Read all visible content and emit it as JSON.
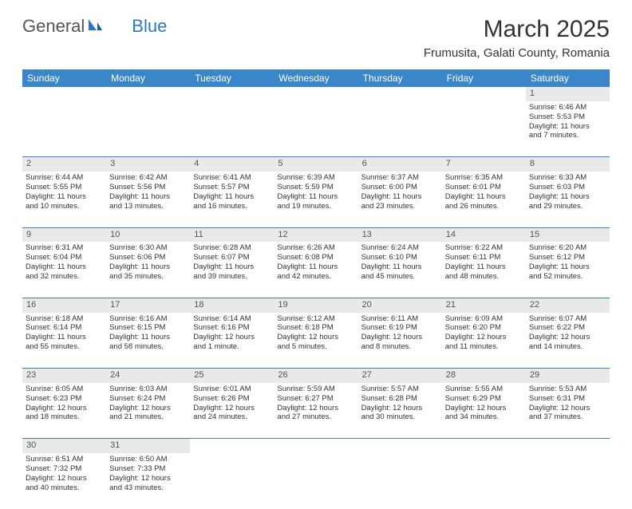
{
  "logo": {
    "general": "General",
    "blue": "Blue"
  },
  "title": "March 2025",
  "location": "Frumusita, Galati County, Romania",
  "headers": [
    "Sunday",
    "Monday",
    "Tuesday",
    "Wednesday",
    "Thursday",
    "Friday",
    "Saturday"
  ],
  "colors": {
    "header_bg": "#3a86c8",
    "header_fg": "#ffffff",
    "daynum_bg": "#e9e9e9",
    "border": "#3a86c8",
    "logo_blue": "#2b78c2"
  },
  "weeks": [
    [
      null,
      null,
      null,
      null,
      null,
      null,
      {
        "n": "1",
        "sr": "Sunrise: 6:46 AM",
        "ss": "Sunset: 5:53 PM",
        "d1": "Daylight: 11 hours",
        "d2": "and 7 minutes."
      }
    ],
    [
      {
        "n": "2",
        "sr": "Sunrise: 6:44 AM",
        "ss": "Sunset: 5:55 PM",
        "d1": "Daylight: 11 hours",
        "d2": "and 10 minutes."
      },
      {
        "n": "3",
        "sr": "Sunrise: 6:42 AM",
        "ss": "Sunset: 5:56 PM",
        "d1": "Daylight: 11 hours",
        "d2": "and 13 minutes."
      },
      {
        "n": "4",
        "sr": "Sunrise: 6:41 AM",
        "ss": "Sunset: 5:57 PM",
        "d1": "Daylight: 11 hours",
        "d2": "and 16 minutes."
      },
      {
        "n": "5",
        "sr": "Sunrise: 6:39 AM",
        "ss": "Sunset: 5:59 PM",
        "d1": "Daylight: 11 hours",
        "d2": "and 19 minutes."
      },
      {
        "n": "6",
        "sr": "Sunrise: 6:37 AM",
        "ss": "Sunset: 6:00 PM",
        "d1": "Daylight: 11 hours",
        "d2": "and 23 minutes."
      },
      {
        "n": "7",
        "sr": "Sunrise: 6:35 AM",
        "ss": "Sunset: 6:01 PM",
        "d1": "Daylight: 11 hours",
        "d2": "and 26 minutes."
      },
      {
        "n": "8",
        "sr": "Sunrise: 6:33 AM",
        "ss": "Sunset: 6:03 PM",
        "d1": "Daylight: 11 hours",
        "d2": "and 29 minutes."
      }
    ],
    [
      {
        "n": "9",
        "sr": "Sunrise: 6:31 AM",
        "ss": "Sunset: 6:04 PM",
        "d1": "Daylight: 11 hours",
        "d2": "and 32 minutes."
      },
      {
        "n": "10",
        "sr": "Sunrise: 6:30 AM",
        "ss": "Sunset: 6:06 PM",
        "d1": "Daylight: 11 hours",
        "d2": "and 35 minutes."
      },
      {
        "n": "11",
        "sr": "Sunrise: 6:28 AM",
        "ss": "Sunset: 6:07 PM",
        "d1": "Daylight: 11 hours",
        "d2": "and 39 minutes."
      },
      {
        "n": "12",
        "sr": "Sunrise: 6:26 AM",
        "ss": "Sunset: 6:08 PM",
        "d1": "Daylight: 11 hours",
        "d2": "and 42 minutes."
      },
      {
        "n": "13",
        "sr": "Sunrise: 6:24 AM",
        "ss": "Sunset: 6:10 PM",
        "d1": "Daylight: 11 hours",
        "d2": "and 45 minutes."
      },
      {
        "n": "14",
        "sr": "Sunrise: 6:22 AM",
        "ss": "Sunset: 6:11 PM",
        "d1": "Daylight: 11 hours",
        "d2": "and 48 minutes."
      },
      {
        "n": "15",
        "sr": "Sunrise: 6:20 AM",
        "ss": "Sunset: 6:12 PM",
        "d1": "Daylight: 11 hours",
        "d2": "and 52 minutes."
      }
    ],
    [
      {
        "n": "16",
        "sr": "Sunrise: 6:18 AM",
        "ss": "Sunset: 6:14 PM",
        "d1": "Daylight: 11 hours",
        "d2": "and 55 minutes."
      },
      {
        "n": "17",
        "sr": "Sunrise: 6:16 AM",
        "ss": "Sunset: 6:15 PM",
        "d1": "Daylight: 11 hours",
        "d2": "and 58 minutes."
      },
      {
        "n": "18",
        "sr": "Sunrise: 6:14 AM",
        "ss": "Sunset: 6:16 PM",
        "d1": "Daylight: 12 hours",
        "d2": "and 1 minute."
      },
      {
        "n": "19",
        "sr": "Sunrise: 6:12 AM",
        "ss": "Sunset: 6:18 PM",
        "d1": "Daylight: 12 hours",
        "d2": "and 5 minutes."
      },
      {
        "n": "20",
        "sr": "Sunrise: 6:11 AM",
        "ss": "Sunset: 6:19 PM",
        "d1": "Daylight: 12 hours",
        "d2": "and 8 minutes."
      },
      {
        "n": "21",
        "sr": "Sunrise: 6:09 AM",
        "ss": "Sunset: 6:20 PM",
        "d1": "Daylight: 12 hours",
        "d2": "and 11 minutes."
      },
      {
        "n": "22",
        "sr": "Sunrise: 6:07 AM",
        "ss": "Sunset: 6:22 PM",
        "d1": "Daylight: 12 hours",
        "d2": "and 14 minutes."
      }
    ],
    [
      {
        "n": "23",
        "sr": "Sunrise: 6:05 AM",
        "ss": "Sunset: 6:23 PM",
        "d1": "Daylight: 12 hours",
        "d2": "and 18 minutes."
      },
      {
        "n": "24",
        "sr": "Sunrise: 6:03 AM",
        "ss": "Sunset: 6:24 PM",
        "d1": "Daylight: 12 hours",
        "d2": "and 21 minutes."
      },
      {
        "n": "25",
        "sr": "Sunrise: 6:01 AM",
        "ss": "Sunset: 6:26 PM",
        "d1": "Daylight: 12 hours",
        "d2": "and 24 minutes."
      },
      {
        "n": "26",
        "sr": "Sunrise: 5:59 AM",
        "ss": "Sunset: 6:27 PM",
        "d1": "Daylight: 12 hours",
        "d2": "and 27 minutes."
      },
      {
        "n": "27",
        "sr": "Sunrise: 5:57 AM",
        "ss": "Sunset: 6:28 PM",
        "d1": "Daylight: 12 hours",
        "d2": "and 30 minutes."
      },
      {
        "n": "28",
        "sr": "Sunrise: 5:55 AM",
        "ss": "Sunset: 6:29 PM",
        "d1": "Daylight: 12 hours",
        "d2": "and 34 minutes."
      },
      {
        "n": "29",
        "sr": "Sunrise: 5:53 AM",
        "ss": "Sunset: 6:31 PM",
        "d1": "Daylight: 12 hours",
        "d2": "and 37 minutes."
      }
    ],
    [
      {
        "n": "30",
        "sr": "Sunrise: 6:51 AM",
        "ss": "Sunset: 7:32 PM",
        "d1": "Daylight: 12 hours",
        "d2": "and 40 minutes."
      },
      {
        "n": "31",
        "sr": "Sunrise: 6:50 AM",
        "ss": "Sunset: 7:33 PM",
        "d1": "Daylight: 12 hours",
        "d2": "and 43 minutes."
      },
      null,
      null,
      null,
      null,
      null
    ]
  ]
}
